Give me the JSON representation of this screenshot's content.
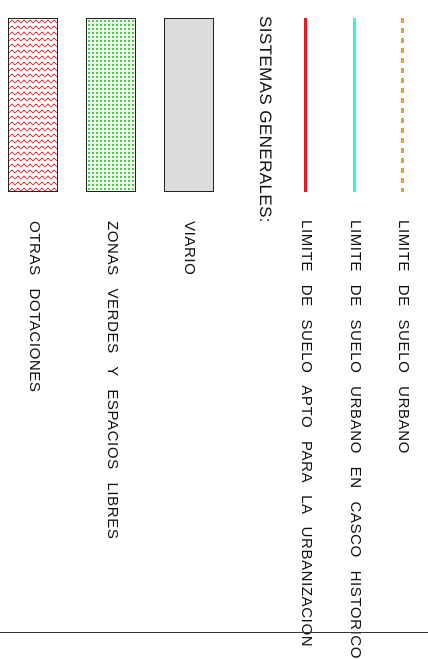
{
  "legend": {
    "items": [
      {
        "label": "LIMITE DE SUELO URBANO",
        "color": "#f29a2e",
        "style": "dashed"
      },
      {
        "label": "LIMITE DE SUELO URBANO EN CASCO HISTORICO",
        "color": "#2ff2f2",
        "style": "solid"
      },
      {
        "label": "LIMITE DE SUELO APTO PARA LA URBANIZACION",
        "color": "#e31b23",
        "style": "solid"
      }
    ],
    "heading": "SISTEMAS GENERALES:",
    "systems": [
      {
        "label": "VIARIO",
        "fill": "#dcdcdc",
        "pattern": "plain-gray"
      },
      {
        "label": "ZONAS VERDES Y ESPACIOS LIBRES",
        "fill": "#ecfbec",
        "pattern": "green-dots"
      },
      {
        "label": "OTRAS DOTACIONES",
        "fill": "#ffffff",
        "pattern": "red-zigzag"
      }
    ]
  }
}
